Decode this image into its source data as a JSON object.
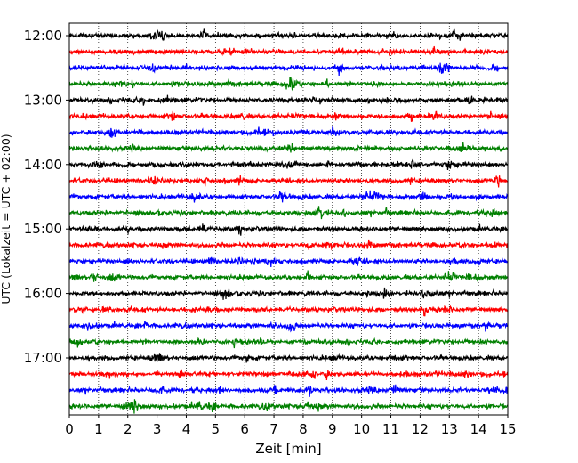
{
  "chart_data": {
    "type": "line",
    "title": "",
    "xlabel": "Zeit  [min]",
    "ylabel": "UTC (Lokalzeit = UTC + 02:00)",
    "xlim": [
      0,
      15
    ],
    "xticks": [
      0,
      1,
      2,
      3,
      4,
      5,
      6,
      7,
      8,
      9,
      10,
      11,
      12,
      13,
      14,
      15
    ],
    "x_grid": "dotted vertical lines at each minute",
    "y_tick_labels": [
      "12:00",
      "13:00",
      "14:00",
      "15:00",
      "16:00",
      "17:00"
    ],
    "trace_start_time": "12:00",
    "trace_interval_minutes": 15,
    "trace_count": 24,
    "trace_colors": [
      "#000000",
      "#ff0000",
      "#0000ff",
      "#008000"
    ],
    "legend": "none"
  }
}
